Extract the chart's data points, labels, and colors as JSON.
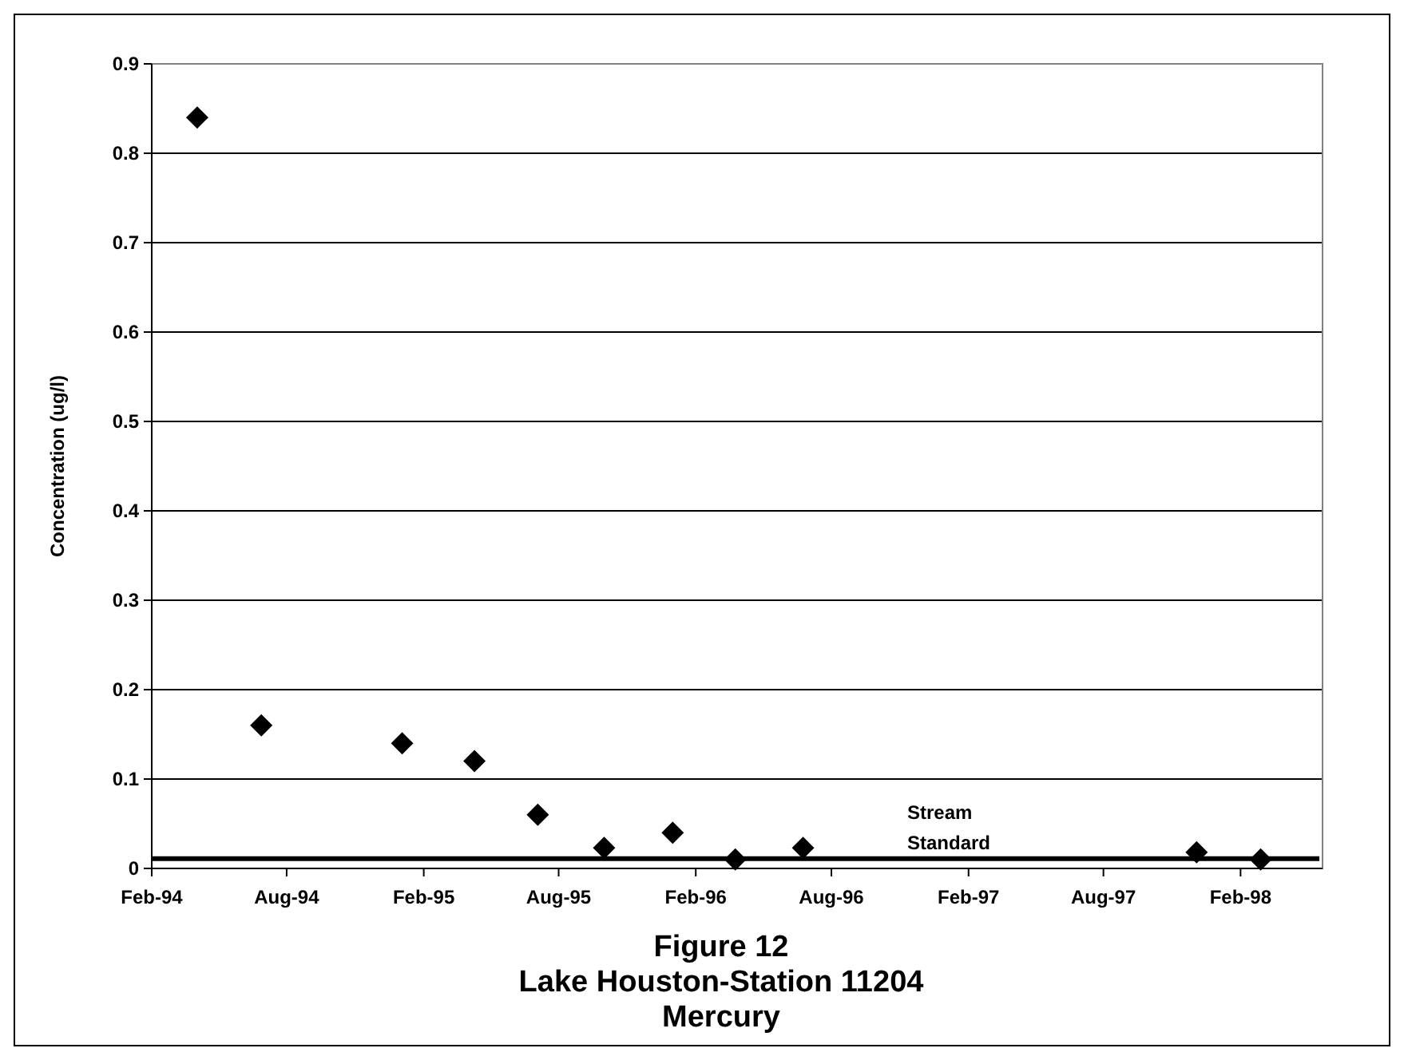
{
  "chart_data": {
    "type": "scatter",
    "title": "Figure 12\nLake Houston-Station 11204\nMercury",
    "ylabel": "Concentration (ug/l)",
    "x": [
      "1994-04-03",
      "1994-06-28",
      "1995-01-03",
      "1995-04-10",
      "1995-07-04",
      "1995-10-01",
      "1996-01-01",
      "1996-03-25",
      "1996-06-24",
      "1997-12-04",
      "1998-02-28"
    ],
    "series": [
      {
        "color": "#000000",
        "values": [
          0.84,
          0.16,
          0.14,
          0.12,
          0.06,
          0.023,
          0.04,
          0.01,
          0.023,
          0.018,
          0.01
        ]
      }
    ],
    "xlim": [
      "1994-02-01",
      "1998-05-22"
    ],
    "xticks": [
      {
        "value": "1994-02-01",
        "label": "Feb-94"
      },
      {
        "value": "1994-08-01",
        "label": "Aug-94"
      },
      {
        "value": "1995-02-01",
        "label": "Feb-95"
      },
      {
        "value": "1995-08-01",
        "label": "Aug-95"
      },
      {
        "value": "1996-02-01",
        "label": "Feb-96"
      },
      {
        "value": "1996-08-01",
        "label": "Aug-96"
      },
      {
        "value": "1997-02-01",
        "label": "Feb-97"
      },
      {
        "value": "1997-08-01",
        "label": "Aug-97"
      },
      {
        "value": "1998-02-01",
        "label": "Feb-98"
      }
    ],
    "ylim": [
      0,
      0.9
    ],
    "yticks": [
      0,
      0.1,
      0.2,
      0.3,
      0.4,
      0.5,
      0.6,
      0.7,
      0.8,
      0.9
    ],
    "grid": "y",
    "marker": "diamond",
    "ref_lines": [
      {
        "axis": "y",
        "value": 0.011,
        "label": "Stream Standard",
        "color": "#000000"
      }
    ]
  }
}
